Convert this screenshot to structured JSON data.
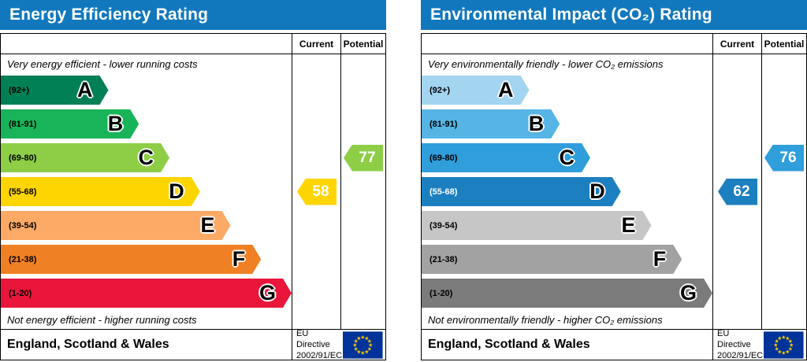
{
  "colors": {
    "header": "#1278be",
    "eu_flag_bg": "#003399",
    "eu_star": "#ffcc00"
  },
  "charts": [
    {
      "title": "Energy Efficiency Rating",
      "columns": {
        "current": "Current",
        "potential": "Potential"
      },
      "top_caption": "Very energy efficient - lower running costs",
      "bottom_caption": "Not energy efficient - higher running costs",
      "bands": [
        {
          "range": "(92+)",
          "letter": "A",
          "color": "#008054",
          "width": "37%"
        },
        {
          "range": "(81-91)",
          "letter": "B",
          "color": "#19b459",
          "width": "47.5%"
        },
        {
          "range": "(69-80)",
          "letter": "C",
          "color": "#8dce46",
          "width": "58%"
        },
        {
          "range": "(55-68)",
          "letter": "D",
          "color": "#ffd500",
          "width": "68.5%"
        },
        {
          "range": "(39-54)",
          "letter": "E",
          "color": "#fcaa65",
          "width": "79%"
        },
        {
          "range": "(21-38)",
          "letter": "F",
          "color": "#ef8023",
          "width": "89.5%"
        },
        {
          "range": "(1-20)",
          "letter": "G",
          "color": "#e9153b",
          "width": "100%"
        }
      ],
      "current": {
        "value": 58,
        "color": "#ffd500",
        "band_index": 3
      },
      "potential": {
        "value": 77,
        "color": "#8dce46",
        "band_index": 2
      },
      "footer": {
        "region": "England, Scotland & Wales",
        "directive_line1": "EU Directive",
        "directive_line2": "2002/91/EC"
      }
    },
    {
      "title": "Environmental Impact (CO₂) Rating",
      "columns": {
        "current": "Current",
        "potential": "Potential"
      },
      "top_caption": "Very environmentally friendly - lower CO₂ emissions",
      "bottom_caption": "Not environmentally friendly - higher CO₂ emissions",
      "bands": [
        {
          "range": "(92+)",
          "letter": "A",
          "color": "#a3d4f0",
          "width": "37%"
        },
        {
          "range": "(81-91)",
          "letter": "B",
          "color": "#56b5e5",
          "width": "47.5%"
        },
        {
          "range": "(69-80)",
          "letter": "C",
          "color": "#2f9edb",
          "width": "58%"
        },
        {
          "range": "(55-68)",
          "letter": "D",
          "color": "#1c7fc0",
          "width": "68.5%",
          "range_color": "#ffffff"
        },
        {
          "range": "(39-54)",
          "letter": "E",
          "color": "#c6c6c6",
          "width": "79%"
        },
        {
          "range": "(21-38)",
          "letter": "F",
          "color": "#a2a2a2",
          "width": "89.5%"
        },
        {
          "range": "(1-20)",
          "letter": "G",
          "color": "#7b7b7b",
          "width": "100%"
        }
      ],
      "current": {
        "value": 62,
        "color": "#1c7fc0",
        "band_index": 3
      },
      "potential": {
        "value": 76,
        "color": "#2f9edb",
        "band_index": 2
      },
      "footer": {
        "region": "England, Scotland & Wales",
        "directive_line1": "EU Directive",
        "directive_line2": "2002/91/EC"
      }
    }
  ],
  "chart_data": [
    {
      "type": "table",
      "title": "Energy Efficiency Rating",
      "region": "England, Scotland & Wales",
      "directive": "EU Directive 2002/91/EC",
      "top_caption": "Very energy efficient - lower running costs",
      "bottom_caption": "Not energy efficient - higher running costs",
      "bands": [
        {
          "letter": "A",
          "range": "92+"
        },
        {
          "letter": "B",
          "range": "81-91"
        },
        {
          "letter": "C",
          "range": "69-80"
        },
        {
          "letter": "D",
          "range": "55-68"
        },
        {
          "letter": "E",
          "range": "39-54"
        },
        {
          "letter": "F",
          "range": "21-38"
        },
        {
          "letter": "G",
          "range": "1-20"
        }
      ],
      "current": {
        "value": 58,
        "band": "D"
      },
      "potential": {
        "value": 77,
        "band": "C"
      }
    },
    {
      "type": "table",
      "title": "Environmental Impact (CO₂) Rating",
      "region": "England, Scotland & Wales",
      "directive": "EU Directive 2002/91/EC",
      "top_caption": "Very environmentally friendly - lower CO₂ emissions",
      "bottom_caption": "Not environmentally friendly - higher CO₂ emissions",
      "bands": [
        {
          "letter": "A",
          "range": "92+"
        },
        {
          "letter": "B",
          "range": "81-91"
        },
        {
          "letter": "C",
          "range": "69-80"
        },
        {
          "letter": "D",
          "range": "55-68"
        },
        {
          "letter": "E",
          "range": "39-54"
        },
        {
          "letter": "F",
          "range": "21-38"
        },
        {
          "letter": "G",
          "range": "1-20"
        }
      ],
      "current": {
        "value": 62,
        "band": "D"
      },
      "potential": {
        "value": 76,
        "band": "C"
      }
    }
  ]
}
